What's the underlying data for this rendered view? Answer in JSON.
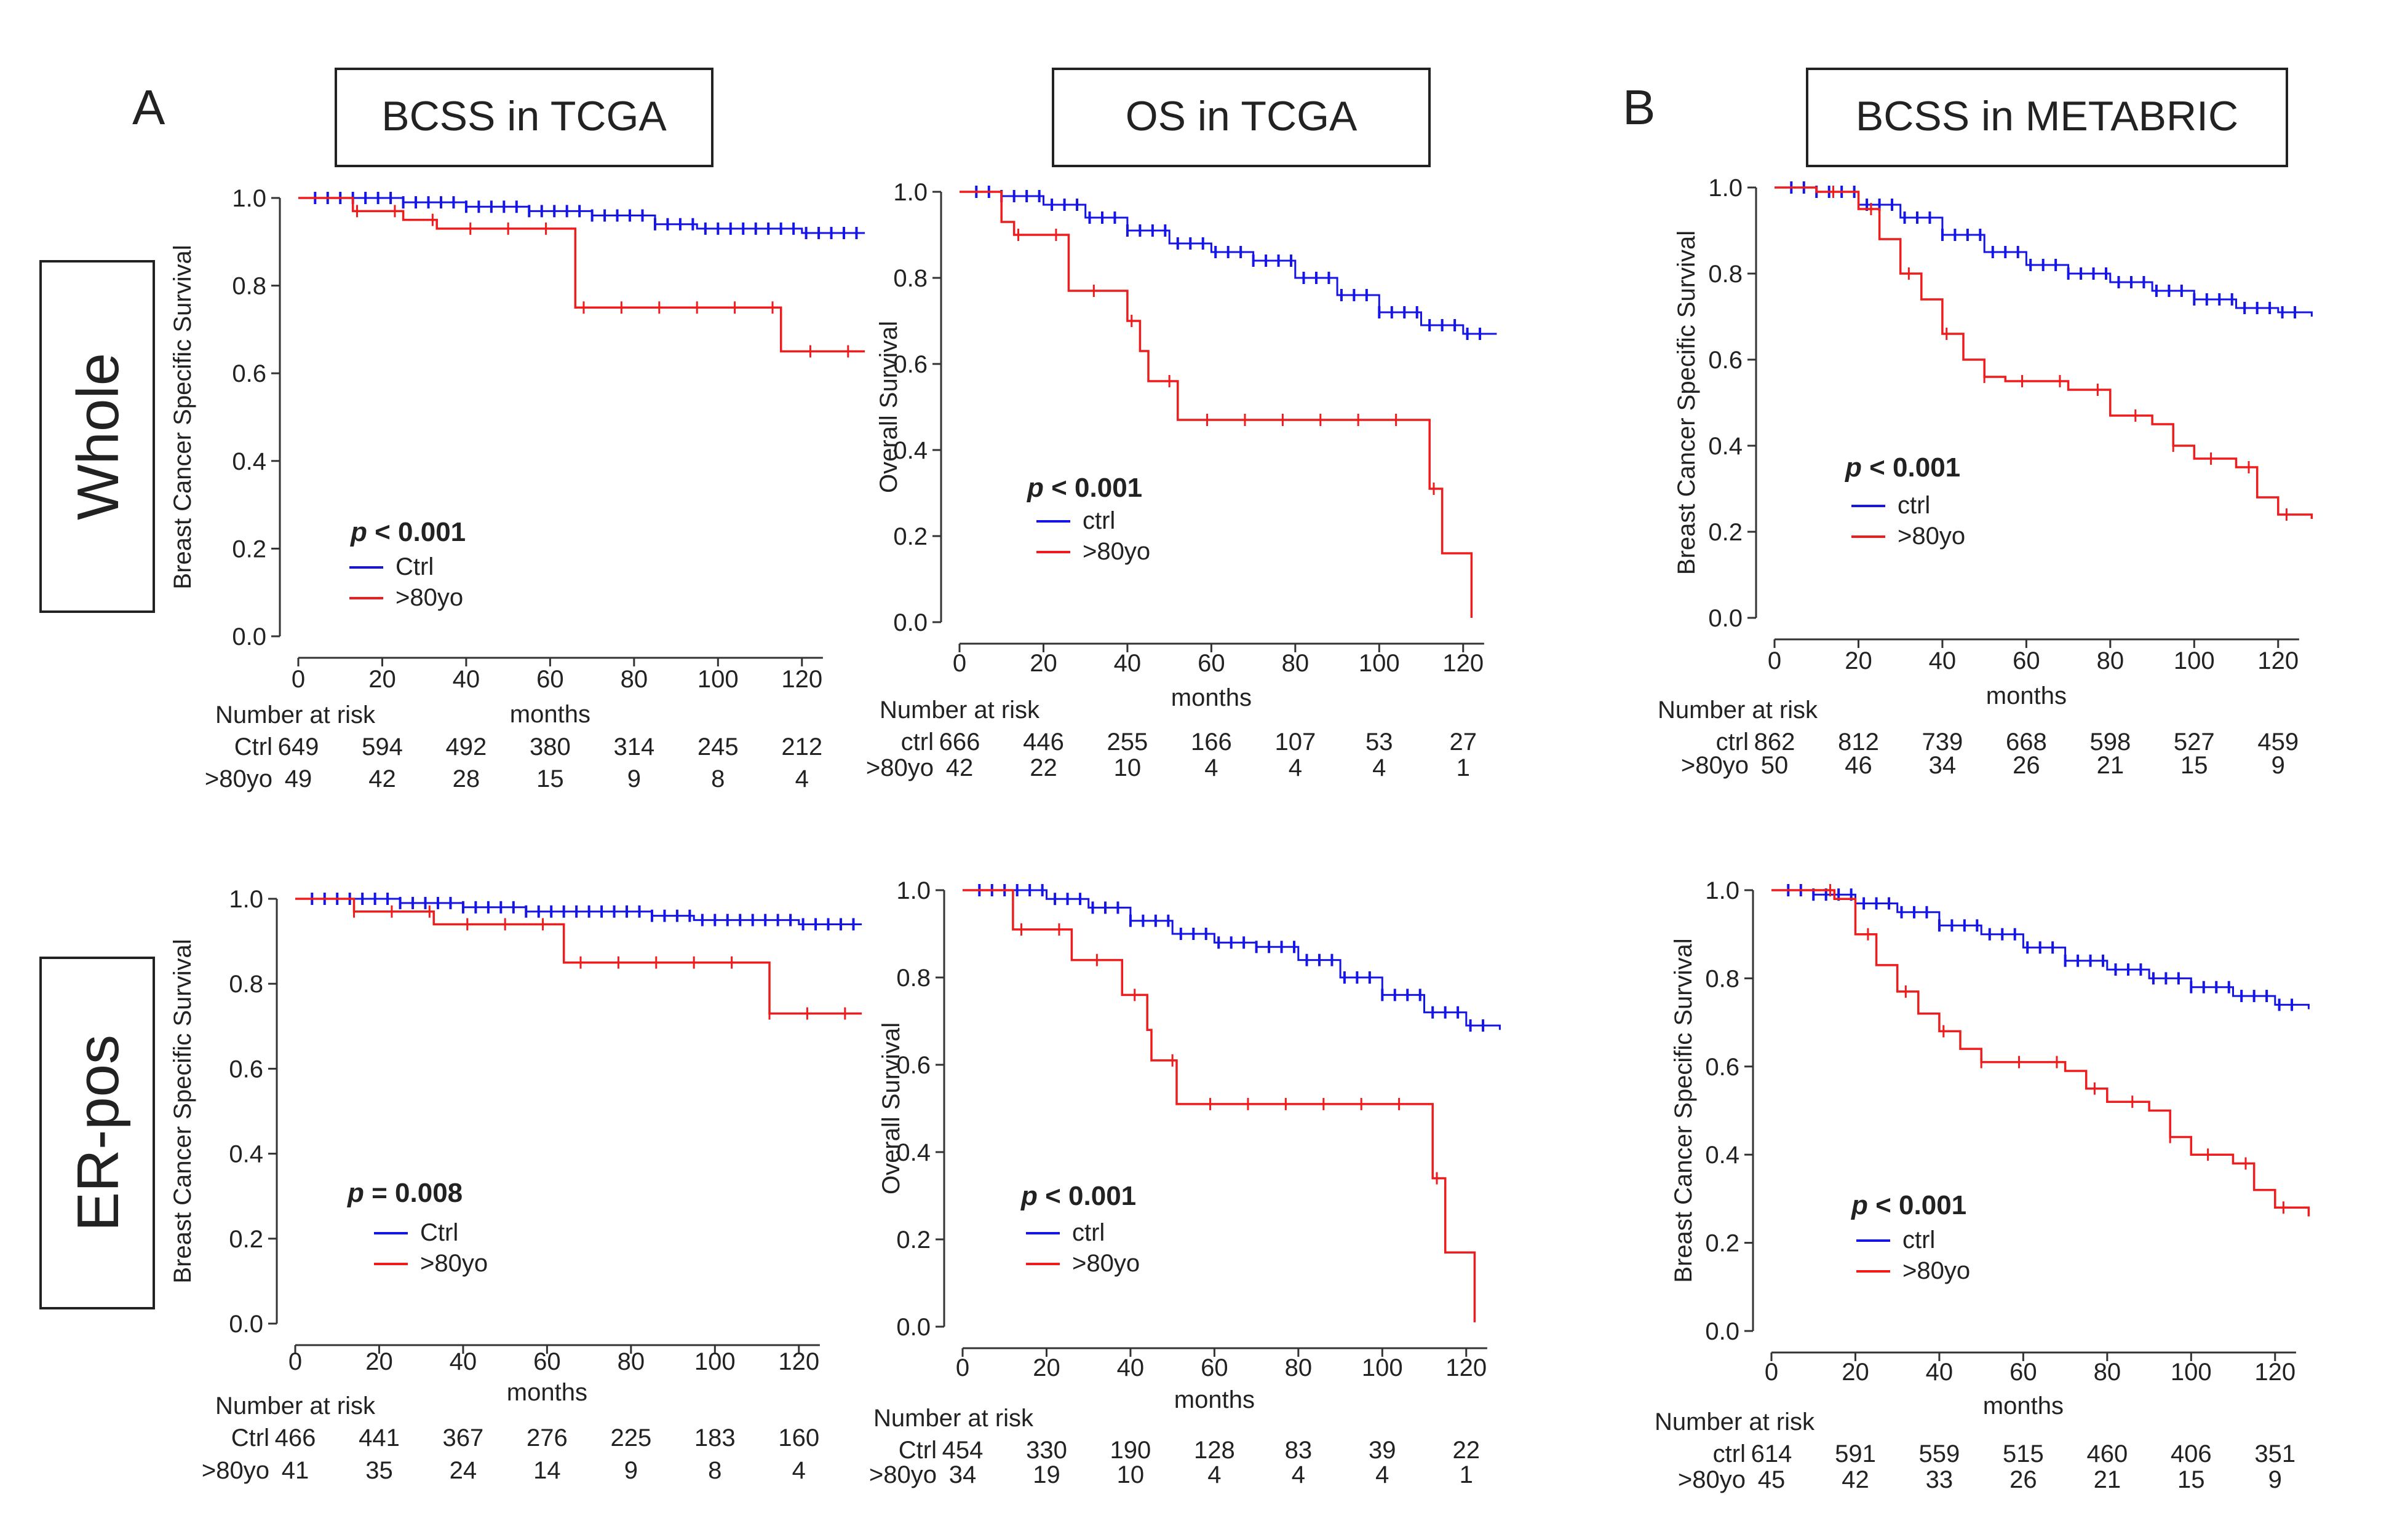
{
  "labels": {
    "panel_a": "A",
    "panel_b": "B",
    "col_headers": [
      "BCSS in TCGA",
      "OS in TCGA",
      "BCSS in METABRIC"
    ],
    "row_headers": [
      "Whole",
      "ER-pos"
    ],
    "months": "months",
    "risk_title": "Number  at risk"
  },
  "colors": {
    "ctrl": "#1515e6",
    "old": "#ee1c1c"
  },
  "chart_data": [
    {
      "id": "whole-bcss-tcga",
      "type": "line",
      "ylabel": "Breast Cancer Specific Survival",
      "xlabel": "months",
      "xlim": [
        0,
        130
      ],
      "ylim": [
        0,
        1.0
      ],
      "xticks": [
        0,
        20,
        40,
        60,
        80,
        100,
        120
      ],
      "yticks": [
        "0.0",
        "0.2",
        "0.4",
        "0.6",
        "0.8",
        "1.0"
      ],
      "pvalue": {
        "label": "p",
        "text": " < 0.001"
      },
      "legend": [
        "Ctrl",
        ">80yo"
      ],
      "series": [
        {
          "name": "Ctrl",
          "x": [
            0,
            10,
            25,
            40,
            55,
            70,
            85,
            95,
            120,
            135
          ],
          "y": [
            1.0,
            1.0,
            0.99,
            0.98,
            0.97,
            0.96,
            0.94,
            0.93,
            0.92,
            0.92
          ]
        },
        {
          "name": ">80yo",
          "x": [
            0,
            10,
            13,
            20,
            25,
            33,
            40,
            55,
            63,
            66,
            80,
            95,
            110,
            115,
            135
          ],
          "y": [
            1.0,
            1.0,
            0.97,
            0.97,
            0.95,
            0.93,
            0.93,
            0.93,
            0.93,
            0.75,
            0.75,
            0.75,
            0.75,
            0.65,
            0.65
          ]
        }
      ],
      "risk": {
        "labels": [
          "Ctrl",
          ">80yo"
        ],
        "values": [
          [
            649,
            594,
            492,
            380,
            314,
            245,
            212
          ],
          [
            49,
            42,
            28,
            15,
            9,
            8,
            4
          ]
        ]
      }
    },
    {
      "id": "whole-os-tcga",
      "type": "line",
      "ylabel": "Overall Survival",
      "xlabel": "months",
      "xlim": [
        0,
        130
      ],
      "ylim": [
        0,
        1.0
      ],
      "xticks": [
        0,
        20,
        40,
        60,
        80,
        100,
        120
      ],
      "yticks": [
        "0.0",
        "0.2",
        "0.4",
        "0.6",
        "0.8",
        "1.0"
      ],
      "pvalue": {
        "label": "p",
        "text": " < 0.001"
      },
      "legend": [
        "ctrl",
        ">80yo"
      ],
      "series": [
        {
          "name": "ctrl",
          "x": [
            0,
            10,
            20,
            30,
            40,
            50,
            60,
            70,
            80,
            90,
            100,
            110,
            120,
            128
          ],
          "y": [
            1.0,
            0.99,
            0.97,
            0.94,
            0.91,
            0.88,
            0.86,
            0.84,
            0.8,
            0.76,
            0.72,
            0.69,
            0.67,
            0.67
          ]
        },
        {
          "name": ">80yo",
          "x": [
            0,
            5,
            10,
            13,
            25,
            26,
            38,
            40,
            43,
            45,
            50,
            52,
            100,
            110,
            112,
            114,
            115,
            120,
            122
          ],
          "y": [
            1.0,
            1.0,
            0.93,
            0.9,
            0.9,
            0.77,
            0.77,
            0.7,
            0.63,
            0.56,
            0.56,
            0.47,
            0.47,
            0.47,
            0.31,
            0.31,
            0.16,
            0.16,
            0.01
          ]
        }
      ],
      "risk": {
        "labels": [
          "ctrl",
          ">80yo"
        ],
        "values": [
          [
            666,
            446,
            255,
            166,
            107,
            53,
            27
          ],
          [
            42,
            22,
            10,
            4,
            4,
            4,
            1
          ]
        ]
      }
    },
    {
      "id": "whole-bcss-metabric",
      "type": "line",
      "ylabel": "Breast Cancer Specific Survival",
      "xlabel": "months",
      "xlim": [
        0,
        130
      ],
      "ylim": [
        0,
        1.0
      ],
      "xticks": [
        0,
        20,
        40,
        60,
        80,
        100,
        120
      ],
      "yticks": [
        "0.0",
        "0.2",
        "0.4",
        "0.6",
        "0.8",
        "1.0"
      ],
      "pvalue": {
        "label": "p",
        "text": " < 0.001"
      },
      "legend": [
        "ctrl",
        ">80yo"
      ],
      "series": [
        {
          "name": "ctrl",
          "x": [
            0,
            10,
            20,
            30,
            40,
            50,
            60,
            70,
            80,
            90,
            100,
            110,
            120,
            128
          ],
          "y": [
            1.0,
            0.99,
            0.96,
            0.93,
            0.89,
            0.85,
            0.82,
            0.8,
            0.78,
            0.76,
            0.74,
            0.72,
            0.71,
            0.7
          ]
        },
        {
          "name": ">80yo",
          "x": [
            0,
            10,
            20,
            25,
            30,
            35,
            40,
            45,
            50,
            55,
            60,
            70,
            80,
            90,
            95,
            100,
            110,
            115,
            120,
            128
          ],
          "y": [
            1.0,
            0.99,
            0.95,
            0.88,
            0.8,
            0.74,
            0.66,
            0.6,
            0.56,
            0.55,
            0.55,
            0.53,
            0.47,
            0.45,
            0.4,
            0.37,
            0.35,
            0.28,
            0.24,
            0.23
          ]
        }
      ],
      "risk": {
        "labels": [
          "ctrl",
          ">80yo"
        ],
        "values": [
          [
            862,
            812,
            739,
            668,
            598,
            527,
            459
          ],
          [
            50,
            46,
            34,
            26,
            21,
            15,
            9
          ]
        ]
      }
    },
    {
      "id": "erpos-bcss-tcga",
      "type": "line",
      "ylabel": "Breast Cancer Specific Survival",
      "xlabel": "months",
      "xlim": [
        0,
        130
      ],
      "ylim": [
        0,
        1.0
      ],
      "xticks": [
        0,
        20,
        40,
        60,
        80,
        100,
        120
      ],
      "yticks": [
        "0.0",
        "0.2",
        "0.4",
        "0.6",
        "0.8",
        "1.0"
      ],
      "pvalue": {
        "label": "p",
        "text": " = 0.008"
      },
      "legend": [
        "Ctrl",
        ">80yo"
      ],
      "series": [
        {
          "name": "Ctrl",
          "x": [
            0,
            10,
            25,
            40,
            55,
            70,
            85,
            95,
            120,
            135
          ],
          "y": [
            1.0,
            1.0,
            0.99,
            0.98,
            0.97,
            0.97,
            0.96,
            0.95,
            0.94,
            0.94
          ]
        },
        {
          "name": ">80yo",
          "x": [
            0,
            10,
            14,
            25,
            33,
            50,
            63,
            64,
            80,
            105,
            110,
            113,
            135
          ],
          "y": [
            1.0,
            1.0,
            0.97,
            0.97,
            0.94,
            0.94,
            0.94,
            0.85,
            0.85,
            0.85,
            0.85,
            0.73,
            0.73
          ]
        }
      ],
      "risk": {
        "labels": [
          "Ctrl",
          ">80yo"
        ],
        "values": [
          [
            466,
            441,
            367,
            276,
            225,
            183,
            160
          ],
          [
            41,
            35,
            24,
            14,
            9,
            8,
            4
          ]
        ]
      }
    },
    {
      "id": "erpos-os-tcga",
      "type": "line",
      "ylabel": "Overall Survival",
      "xlabel": "months",
      "xlim": [
        0,
        130
      ],
      "ylim": [
        0,
        1.0
      ],
      "xticks": [
        0,
        20,
        40,
        60,
        80,
        100,
        120
      ],
      "yticks": [
        "0.0",
        "0.2",
        "0.4",
        "0.6",
        "0.8",
        "1.0"
      ],
      "pvalue": {
        "label": "p",
        "text": " < 0.001"
      },
      "legend": [
        "ctrl",
        ">80yo"
      ],
      "series": [
        {
          "name": "ctrl",
          "x": [
            0,
            10,
            20,
            30,
            40,
            50,
            60,
            70,
            80,
            90,
            100,
            110,
            120,
            128
          ],
          "y": [
            1.0,
            1.0,
            0.98,
            0.96,
            0.93,
            0.9,
            0.88,
            0.87,
            0.84,
            0.8,
            0.76,
            0.72,
            0.69,
            0.68
          ]
        },
        {
          "name": ">80yo",
          "x": [
            0,
            7,
            12,
            25,
            26,
            37,
            38,
            44,
            45,
            50,
            51,
            100,
            110,
            112,
            114,
            115,
            121,
            122
          ],
          "y": [
            1.0,
            1.0,
            0.91,
            0.91,
            0.84,
            0.84,
            0.76,
            0.68,
            0.61,
            0.61,
            0.51,
            0.51,
            0.51,
            0.34,
            0.34,
            0.17,
            0.17,
            0.01
          ]
        }
      ],
      "risk": {
        "labels": [
          "Ctrl",
          ">80yo"
        ],
        "values": [
          [
            454,
            330,
            190,
            128,
            83,
            39,
            22
          ],
          [
            34,
            19,
            10,
            4,
            4,
            4,
            1
          ]
        ]
      }
    },
    {
      "id": "erpos-bcss-metabric",
      "type": "line",
      "ylabel": "Breast Cancer Specific Survival",
      "xlabel": "months",
      "xlim": [
        0,
        130
      ],
      "ylim": [
        0,
        1.0
      ],
      "xticks": [
        0,
        20,
        40,
        60,
        80,
        100,
        120
      ],
      "yticks": [
        "0.0",
        "0.2",
        "0.4",
        "0.6",
        "0.8",
        "1.0"
      ],
      "pvalue": {
        "label": "p",
        "text": " < 0.001"
      },
      "legend": [
        "ctrl",
        ">80yo"
      ],
      "series": [
        {
          "name": "ctrl",
          "x": [
            0,
            10,
            20,
            30,
            40,
            50,
            60,
            70,
            80,
            90,
            100,
            110,
            120,
            128
          ],
          "y": [
            1.0,
            0.99,
            0.97,
            0.95,
            0.92,
            0.9,
            0.87,
            0.84,
            0.82,
            0.8,
            0.78,
            0.76,
            0.74,
            0.73
          ]
        },
        {
          "name": ">80yo",
          "x": [
            0,
            10,
            15,
            20,
            25,
            30,
            35,
            40,
            45,
            50,
            55,
            70,
            75,
            80,
            90,
            95,
            100,
            110,
            115,
            120,
            128
          ],
          "y": [
            1.0,
            1.0,
            0.98,
            0.9,
            0.83,
            0.77,
            0.72,
            0.68,
            0.64,
            0.61,
            0.61,
            0.59,
            0.55,
            0.52,
            0.5,
            0.44,
            0.4,
            0.38,
            0.32,
            0.28,
            0.26
          ]
        }
      ],
      "risk": {
        "labels": [
          "ctrl",
          ">80yo"
        ],
        "values": [
          [
            614,
            591,
            559,
            515,
            460,
            406,
            351
          ],
          [
            45,
            42,
            33,
            26,
            21,
            15,
            9
          ]
        ]
      }
    }
  ]
}
